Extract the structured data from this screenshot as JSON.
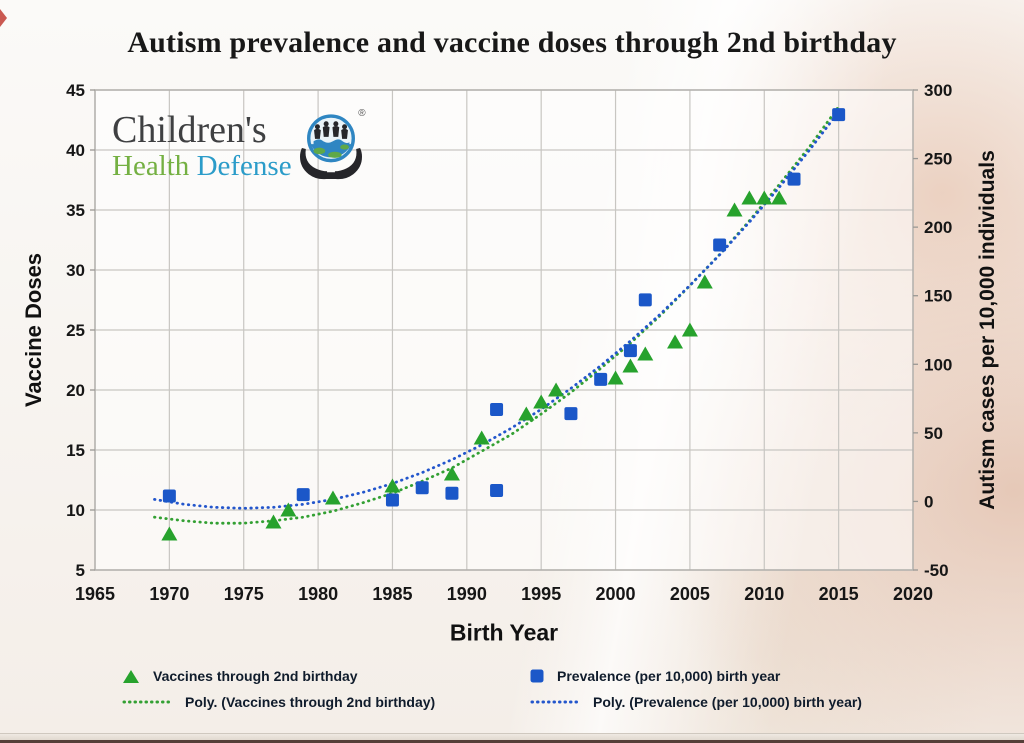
{
  "title": "Autism prevalence and vaccine doses through 2nd birthday",
  "logo": {
    "line1": "Children's",
    "line2_word1": "Health",
    "line2_word2": "Defense",
    "registered": "®",
    "globe_icon": "globe-in-hands-icon",
    "color_line1": "#3f4042",
    "color_health": "#74b042",
    "color_defense": "#2b9cc9"
  },
  "legend": {
    "items": [
      {
        "label": "Vaccines through 2nd birthday",
        "swatch": "green-triangle"
      },
      {
        "label": "Prevalence (per 10,000) birth year",
        "swatch": "blue-square"
      },
      {
        "label": "Poly. (Vaccines through 2nd birthday)",
        "swatch": "green-dotted-line"
      },
      {
        "label": "Poly. (Prevalence (per 10,000) birth year)",
        "swatch": "blue-dotted-line"
      }
    ]
  },
  "chart_data": {
    "type": "scatter",
    "title": "Autism prevalence and vaccine doses through 2nd birthday",
    "xlabel": "Birth Year",
    "ylabel_left": "Vaccine Doses",
    "ylabel_right": "Autism cases per 10,000 individuals",
    "x_range": [
      1965,
      2020
    ],
    "x_ticks": [
      1965,
      1970,
      1975,
      1980,
      1985,
      1990,
      1995,
      2000,
      2005,
      2010,
      2015,
      2020
    ],
    "y_left_range": [
      5,
      45
    ],
    "y_left_ticks": [
      45,
      40,
      35,
      30,
      25,
      20,
      15,
      10,
      5
    ],
    "y_right_range": [
      -50,
      300
    ],
    "y_right_ticks": [
      300,
      250,
      200,
      150,
      100,
      50,
      0,
      -50
    ],
    "grid": true,
    "legend_position": "bottom",
    "series": [
      {
        "name": "Vaccines through 2nd birthday",
        "axis": "left",
        "marker": "triangle",
        "color": "#27a22d",
        "points": [
          [
            1970,
            8
          ],
          [
            1977,
            9
          ],
          [
            1978,
            10
          ],
          [
            1981,
            11
          ],
          [
            1985,
            12
          ],
          [
            1989,
            13
          ],
          [
            1991,
            16
          ],
          [
            1994,
            18
          ],
          [
            1995,
            19
          ],
          [
            1996,
            20
          ],
          [
            2000,
            21
          ],
          [
            2001,
            22
          ],
          [
            2002,
            23
          ],
          [
            2004,
            24
          ],
          [
            2005,
            25
          ],
          [
            2006,
            29
          ],
          [
            2008,
            35
          ],
          [
            2009,
            36
          ],
          [
            2010,
            36
          ],
          [
            2011,
            36
          ]
        ]
      },
      {
        "name": "Prevalence (per 10,000) birth year",
        "axis": "right",
        "marker": "square",
        "color": "#1b57c8",
        "points": [
          [
            1970,
            4
          ],
          [
            1979,
            5
          ],
          [
            1985,
            1
          ],
          [
            1987,
            10
          ],
          [
            1989,
            6
          ],
          [
            1992,
            8
          ],
          [
            1992,
            67
          ],
          [
            1997,
            64
          ],
          [
            1999,
            89
          ],
          [
            2001,
            110
          ],
          [
            2002,
            147
          ],
          [
            2007,
            187
          ],
          [
            2012,
            235
          ],
          [
            2015,
            282
          ]
        ]
      },
      {
        "name": "Poly. (Vaccines through 2nd birthday)",
        "axis": "left",
        "marker": "dotted-trendline",
        "color": "#33a033",
        "points": [
          [
            1969,
            9.4
          ],
          [
            1971,
            9.1
          ],
          [
            1973,
            8.9
          ],
          [
            1975,
            8.9
          ],
          [
            1977,
            9.1
          ],
          [
            1979,
            9.4
          ],
          [
            1981,
            9.9
          ],
          [
            1983,
            10.6
          ],
          [
            1985,
            11.4
          ],
          [
            1987,
            12.4
          ],
          [
            1989,
            13.5
          ],
          [
            1991,
            14.9
          ],
          [
            1993,
            16.3
          ],
          [
            1995,
            18.0
          ],
          [
            1997,
            19.8
          ],
          [
            1999,
            21.8
          ],
          [
            2001,
            23.9
          ],
          [
            2003,
            26.2
          ],
          [
            2005,
            28.7
          ],
          [
            2007,
            31.3
          ],
          [
            2009,
            34.1
          ],
          [
            2011,
            37.1
          ],
          [
            2013,
            40.2
          ],
          [
            2015,
            43.6
          ]
        ]
      },
      {
        "name": "Poly. (Prevalence (per 10,000) birth year)",
        "axis": "right",
        "marker": "dotted-trendline",
        "color": "#2356cc",
        "points": [
          [
            1969,
            1.5
          ],
          [
            1971,
            -2.1
          ],
          [
            1973,
            -4.3
          ],
          [
            1975,
            -5.0
          ],
          [
            1977,
            -4.3
          ],
          [
            1979,
            -2.1
          ],
          [
            1981,
            1.5
          ],
          [
            1983,
            6.6
          ],
          [
            1985,
            13.1
          ],
          [
            1987,
            21.0
          ],
          [
            1989,
            30.4
          ],
          [
            1991,
            41.2
          ],
          [
            1993,
            53.5
          ],
          [
            1995,
            67.2
          ],
          [
            1997,
            82.4
          ],
          [
            1999,
            99.0
          ],
          [
            2001,
            117.0
          ],
          [
            2003,
            136.5
          ],
          [
            2005,
            157.5
          ],
          [
            2007,
            179.8
          ],
          [
            2009,
            203.7
          ],
          [
            2011,
            228.9
          ],
          [
            2013,
            255.7
          ],
          [
            2015,
            284.0
          ]
        ]
      }
    ]
  }
}
